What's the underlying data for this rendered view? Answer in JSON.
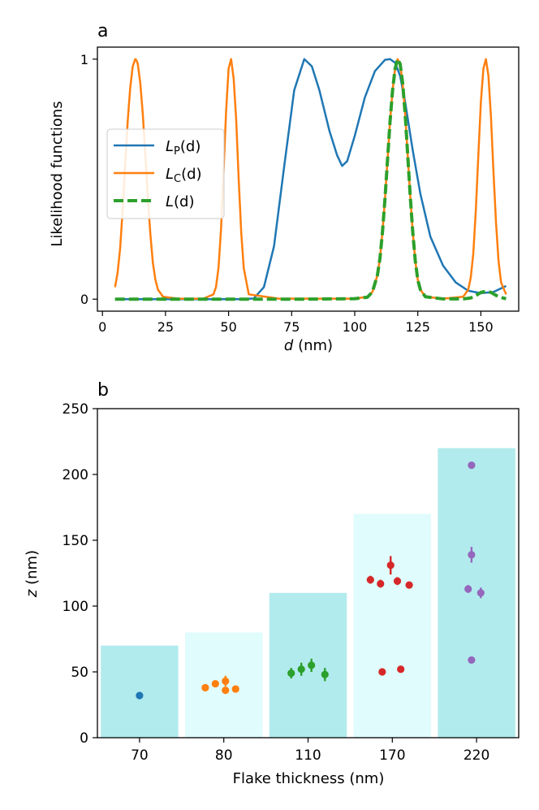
{
  "chart_data": [
    {
      "panel_label": "a",
      "type": "line",
      "xlabel_var": "d",
      "xlabel_unit": " (nm)",
      "ylabel": "Likelihood functions",
      "xlim": [
        -2,
        165
      ],
      "ylim": [
        -0.05,
        1.05
      ],
      "xticks": [
        0,
        25,
        50,
        75,
        100,
        125,
        150
      ],
      "yticks": [
        0,
        1
      ],
      "legend": {
        "position": "center-left",
        "entries": [
          {
            "var": "L",
            "sub": "P",
            "arg": "(d)"
          },
          {
            "var": "L",
            "sub": "C",
            "arg": "(d)"
          },
          {
            "var": "L",
            "sub": "",
            "arg": "(d)"
          }
        ]
      },
      "series": [
        {
          "name": "LP(d)",
          "color": "#1f77b4",
          "style": "solid",
          "x": [
            5,
            20,
            40,
            50,
            55,
            60,
            64,
            68,
            72,
            76,
            80,
            83,
            86,
            90,
            93,
            95,
            97,
            100,
            104,
            108,
            112,
            114,
            116,
            118,
            120,
            123,
            126,
            130,
            135,
            140,
            145,
            150,
            155,
            160
          ],
          "y": [
            0,
            0,
            0,
            0,
            0,
            0.003,
            0.05,
            0.22,
            0.55,
            0.87,
            1.0,
            0.97,
            0.87,
            0.7,
            0.6,
            0.555,
            0.575,
            0.68,
            0.84,
            0.95,
            0.997,
            1.0,
            0.985,
            0.93,
            0.82,
            0.62,
            0.44,
            0.26,
            0.14,
            0.07,
            0.035,
            0.025,
            0.03,
            0.055
          ]
        },
        {
          "name": "LC(d)",
          "color": "#ff7f0e",
          "style": "solid",
          "x": [
            5,
            6,
            7,
            8,
            9,
            10,
            11,
            12,
            13,
            13.5,
            14,
            15,
            16,
            17,
            18,
            19,
            20,
            21,
            22,
            24,
            30,
            40,
            44,
            45,
            46,
            47,
            48,
            49,
            50,
            51,
            52,
            53,
            54,
            55,
            56,
            58,
            70,
            90,
            100,
            105,
            107,
            109,
            110,
            111,
            112,
            113,
            114,
            115,
            116,
            117,
            118,
            119,
            120,
            121,
            122,
            123,
            124,
            125,
            126,
            128,
            135,
            143,
            145,
            146,
            147,
            148,
            149,
            150,
            151,
            152,
            153,
            154,
            155,
            156,
            157,
            158,
            160
          ],
          "y": [
            0.05,
            0.11,
            0.21,
            0.37,
            0.56,
            0.74,
            0.88,
            0.97,
            1.0,
            0.995,
            0.98,
            0.9,
            0.77,
            0.6,
            0.42,
            0.27,
            0.15,
            0.08,
            0.04,
            0.01,
            0.002,
            0.002,
            0.02,
            0.05,
            0.13,
            0.29,
            0.53,
            0.78,
            0.96,
            1.0,
            0.92,
            0.75,
            0.5,
            0.28,
            0.13,
            0.02,
            0.002,
            0.002,
            0.002,
            0.01,
            0.03,
            0.1,
            0.17,
            0.28,
            0.42,
            0.58,
            0.74,
            0.87,
            0.96,
            1.0,
            0.98,
            0.9,
            0.77,
            0.6,
            0.43,
            0.28,
            0.16,
            0.08,
            0.04,
            0.01,
            0.002,
            0.01,
            0.04,
            0.09,
            0.19,
            0.37,
            0.6,
            0.82,
            0.96,
            1.0,
            0.93,
            0.76,
            0.53,
            0.32,
            0.16,
            0.07,
            0.02
          ]
        },
        {
          "name": "L(d)",
          "color": "#2ca02c",
          "style": "dashed",
          "x": [
            5,
            20,
            40,
            60,
            80,
            100,
            105,
            107,
            109,
            110,
            111,
            112,
            113,
            114,
            115,
            116,
            117,
            118,
            119,
            120,
            121,
            122,
            123,
            124,
            125,
            126,
            128,
            135,
            143,
            146,
            148,
            150,
            152,
            154,
            156,
            158,
            160
          ],
          "y": [
            0,
            0,
            0,
            0,
            0,
            0.002,
            0.008,
            0.03,
            0.1,
            0.17,
            0.28,
            0.42,
            0.58,
            0.74,
            0.87,
            0.96,
            1.0,
            0.98,
            0.9,
            0.77,
            0.6,
            0.43,
            0.28,
            0.16,
            0.08,
            0.04,
            0.01,
            0.001,
            0.001,
            0.005,
            0.015,
            0.028,
            0.033,
            0.028,
            0.016,
            0.007,
            0.002
          ]
        }
      ]
    },
    {
      "panel_label": "b",
      "type": "bar",
      "xlabel": "Flake thickness (nm)",
      "ylabel_var": "z",
      "ylabel_unit": " (nm)",
      "ylim": [
        0,
        250
      ],
      "yticks": [
        0,
        50,
        100,
        150,
        200,
        250
      ],
      "categories": [
        "70",
        "80",
        "110",
        "170",
        "220"
      ],
      "bar_values": [
        70,
        80,
        110,
        170,
        220
      ],
      "bar_colors": [
        "#b2ebed",
        "#e0fcfc",
        "#b2ebed",
        "#e0fcfc",
        "#b2ebed"
      ],
      "point_groups": [
        {
          "category": "70",
          "color": "#1f77b4",
          "points": [
            {
              "offset": 0,
              "z": 32,
              "err": 0
            }
          ]
        },
        {
          "category": "80",
          "color": "#ff7f0e",
          "points": [
            {
              "offset": -0.22,
              "z": 38,
              "err": 1
            },
            {
              "offset": -0.1,
              "z": 41,
              "err": 2
            },
            {
              "offset": 0.02,
              "z": 43,
              "err": 4
            },
            {
              "offset": 0.02,
              "z": 36,
              "err": 1
            },
            {
              "offset": 0.14,
              "z": 37,
              "err": 1
            }
          ]
        },
        {
          "category": "110",
          "color": "#2ca02c",
          "points": [
            {
              "offset": -0.2,
              "z": 49,
              "err": 4
            },
            {
              "offset": -0.08,
              "z": 52,
              "err": 5
            },
            {
              "offset": 0.04,
              "z": 55,
              "err": 5
            },
            {
              "offset": 0.2,
              "z": 48,
              "err": 5
            }
          ]
        },
        {
          "category": "170",
          "color": "#d62728",
          "points": [
            {
              "offset": -0.26,
              "z": 120,
              "err": 3
            },
            {
              "offset": -0.14,
              "z": 117,
              "err": 3
            },
            {
              "offset": -0.02,
              "z": 131,
              "err": 7
            },
            {
              "offset": 0.06,
              "z": 119,
              "err": 3
            },
            {
              "offset": 0.2,
              "z": 116,
              "err": 2
            },
            {
              "offset": -0.12,
              "z": 50,
              "err": 1
            },
            {
              "offset": 0.1,
              "z": 52,
              "err": 1
            }
          ]
        },
        {
          "category": "220",
          "color": "#9467bd",
          "points": [
            {
              "offset": -0.06,
              "z": 207,
              "err": 2
            },
            {
              "offset": -0.06,
              "z": 139,
              "err": 6
            },
            {
              "offset": -0.1,
              "z": 113,
              "err": 3
            },
            {
              "offset": 0.05,
              "z": 110,
              "err": 4
            },
            {
              "offset": -0.06,
              "z": 59,
              "err": 1
            }
          ]
        }
      ]
    }
  ]
}
